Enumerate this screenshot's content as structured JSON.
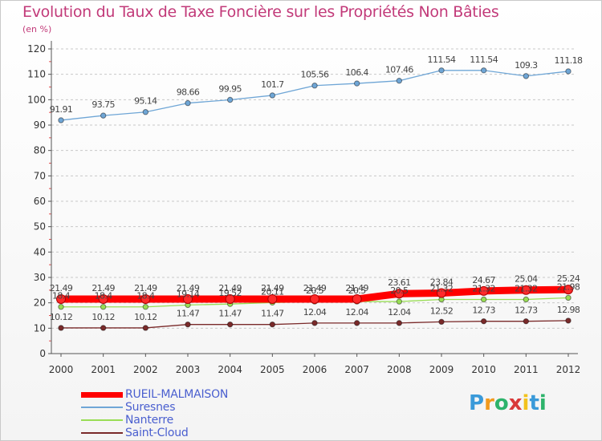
{
  "header": {
    "title": "Evolution du Taux de Taxe Foncière sur les Propriétés Non Bâties",
    "unit": "(en %)"
  },
  "logo": {
    "text": "Proxiti"
  },
  "colors": {
    "title": "#c23a79",
    "legend_text": "#4a5fcf",
    "axis": "#555555",
    "grid": "#c8c8c8"
  },
  "chart_data": {
    "type": "line",
    "title": "Evolution du Taux de Taxe Foncière sur les Propriétés Non Bâties",
    "ylabel": "(en %)",
    "xlabel": "",
    "ylim": [
      0,
      120
    ],
    "yticks": [
      0,
      10,
      20,
      30,
      40,
      50,
      60,
      70,
      80,
      90,
      100,
      110,
      120
    ],
    "grid": "horizontal dashed",
    "legend_position": "bottom-left",
    "x": [
      "2000",
      "2001",
      "2002",
      "2003",
      "2004",
      "2005",
      "2006",
      "2007",
      "2008",
      "2009",
      "2010",
      "2011",
      "2012"
    ],
    "series": [
      {
        "name": "RUEIL-MALMAISON",
        "color": "#ff0000",
        "values": [
          21.49,
          21.49,
          21.49,
          21.49,
          21.49,
          21.49,
          21.49,
          21.49,
          23.61,
          23.84,
          24.67,
          25.04,
          25.24
        ],
        "labels": [
          "21.49",
          "21.49",
          "21.49",
          "21.49",
          "21.49",
          "21.49",
          "21.49",
          "21.49",
          "23.61",
          "23.84",
          "24.67",
          "25.04",
          "25.24"
        ]
      },
      {
        "name": "Suresnes",
        "color": "#6fa6d6",
        "values": [
          91.91,
          93.75,
          95.14,
          98.66,
          99.95,
          101.7,
          105.56,
          106.4,
          107.46,
          111.54,
          111.54,
          109.3,
          111.18
        ],
        "labels": [
          "91.91",
          "93.75",
          "95.14",
          "98.66",
          "99.95",
          "101.7",
          "105.56",
          "106.4",
          "107.46",
          "111.54",
          "111.54",
          "109.3",
          "111.18"
        ]
      },
      {
        "name": "Nanterre",
        "color": "#99dd55",
        "values": [
          18.4,
          18.4,
          18.4,
          19.14,
          19.52,
          20.11,
          20.5,
          20.5,
          20.5,
          21.32,
          21.32,
          21.32,
          21.98
        ],
        "labels": [
          "18.4",
          "18.4",
          "18.4",
          "19.14",
          "19.52",
          "20.11",
          "20.5",
          "20.5",
          "20.5",
          "21.32",
          "21.32",
          "21.32",
          "21.98"
        ]
      },
      {
        "name": "Saint-Cloud",
        "color": "#7a2a2a",
        "values": [
          10.12,
          10.12,
          10.12,
          11.47,
          11.47,
          11.47,
          12.04,
          12.04,
          12.04,
          12.52,
          12.73,
          12.73,
          12.98
        ],
        "labels": [
          "10.12",
          "10.12",
          "10.12",
          "11.47",
          "11.47",
          "11.47",
          "12.04",
          "12.04",
          "12.04",
          "12.52",
          "12.73",
          "12.73",
          "12.98"
        ]
      }
    ]
  }
}
